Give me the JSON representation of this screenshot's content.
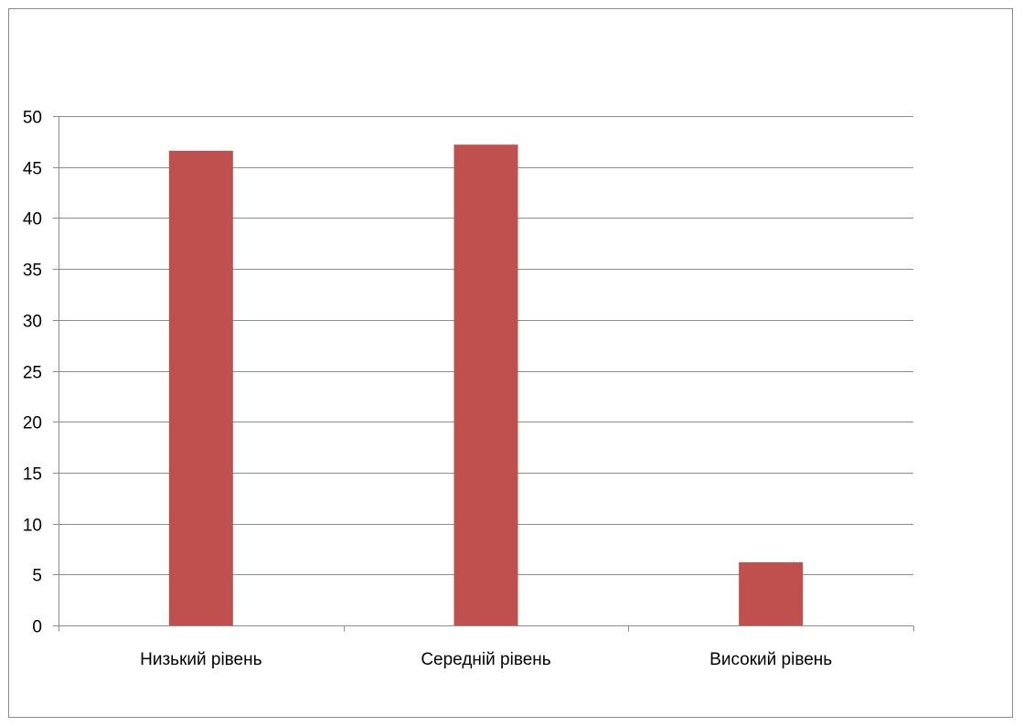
{
  "chart_data": {
    "type": "bar",
    "title": "",
    "xlabel": "",
    "ylabel": "",
    "categories": [
      "Низький рівень",
      "Середній рівень",
      "Високий рівень"
    ],
    "series": [
      {
        "values": [
          46.6,
          47.2,
          6.2
        ]
      }
    ],
    "ylim": [
      0,
      50
    ],
    "yticks": [
      "0",
      "5",
      "10",
      "15",
      "20",
      "25",
      "30",
      "35",
      "40",
      "45",
      "50"
    ],
    "grid": true,
    "legend": "none",
    "bar_color": "#C0504D"
  }
}
